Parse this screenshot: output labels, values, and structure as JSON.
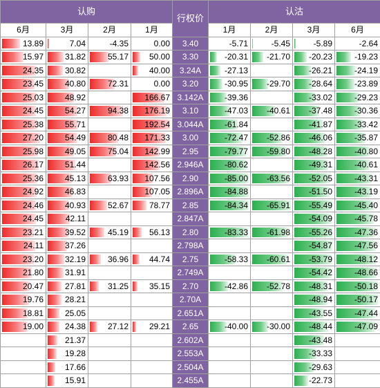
{
  "headers": {
    "calls": "认购",
    "strike": "行权价",
    "puts": "认沽",
    "call_months": [
      "6月",
      "3月",
      "2月",
      "1月"
    ],
    "put_months": [
      "1月",
      "2月",
      "3月",
      "6月"
    ]
  },
  "colors": {
    "header_purple": "#8064a2",
    "call_bar": "#ee2a2a",
    "put_bar": "#2bb04f"
  },
  "rows": [
    {
      "c6": "13.89",
      "c3": "7.04",
      "c2": "-4.35",
      "c1": "0.00",
      "k": "3.40",
      "p1": "-5.71",
      "p2": "-5.45",
      "p3": "-5.89",
      "p6": "-2.64"
    },
    {
      "c6": "15.97",
      "c3": "31.82",
      "c2": "55.17",
      "c1": "50.00",
      "k": "3.30",
      "p1": "-20.31",
      "p2": "-21.70",
      "p3": "-20.23",
      "p6": "-19.23"
    },
    {
      "c6": "24.35",
      "c3": "30.82",
      "c2": "",
      "c1": "40.00",
      "k": "3.24A",
      "p1": "-27.13",
      "p2": "",
      "p3": "-26.21",
      "p6": "-24.19"
    },
    {
      "c6": "23.45",
      "c3": "40.80",
      "c2": "72.31",
      "c1": "0.00",
      "k": "3.20",
      "p1": "-30.95",
      "p2": "-29.70",
      "p3": "-28.64",
      "p6": "-23.89"
    },
    {
      "c6": "25.03",
      "c3": "48.92",
      "c2": "",
      "c1": "166.67",
      "k": "3.142A",
      "p1": "-39.36",
      "p2": "",
      "p3": "-33.02",
      "p6": "-29.23"
    },
    {
      "c6": "24.45",
      "c3": "54.27",
      "c2": "94.38",
      "c1": "176.19",
      "k": "3.10",
      "p1": "-47.03",
      "p2": "-40.61",
      "p3": "-37.48",
      "p6": "-30.36"
    },
    {
      "c6": "25.38",
      "c3": "55.71",
      "c2": "",
      "c1": "192.54",
      "k": "3.044A",
      "p1": "-61.84",
      "p2": "",
      "p3": "-41.87",
      "p6": "-33.42"
    },
    {
      "c6": "27.20",
      "c3": "54.49",
      "c2": "80.48",
      "c1": "171.33",
      "k": "3.00",
      "p1": "-72.47",
      "p2": "-52.86",
      "p3": "-46.06",
      "p6": "-35.87"
    },
    {
      "c6": "25.98",
      "c3": "49.05",
      "c2": "75.04",
      "c1": "142.99",
      "k": "2.95",
      "p1": "-79.77",
      "p2": "-59.80",
      "p3": "-48.28",
      "p6": "-40.80"
    },
    {
      "c6": "26.17",
      "c3": "51.44",
      "c2": "",
      "c1": "142.56",
      "k": "2.946A",
      "p1": "-80.62",
      "p2": "",
      "p3": "-49.31",
      "p6": "-40.61"
    },
    {
      "c6": "25.36",
      "c3": "45.13",
      "c2": "63.93",
      "c1": "107.56",
      "k": "2.90",
      "p1": "-85.00",
      "p2": "-63.56",
      "p3": "-52.05",
      "p6": "-43.31"
    },
    {
      "c6": "24.92",
      "c3": "46.83",
      "c2": "",
      "c1": "107.05",
      "k": "2.896A",
      "p1": "-84.88",
      "p2": "",
      "p3": "-51.50",
      "p6": "-43.19"
    },
    {
      "c6": "24.46",
      "c3": "40.93",
      "c2": "52.67",
      "c1": "78.77",
      "k": "2.85",
      "p1": "-84.34",
      "p2": "-65.91",
      "p3": "-55.49",
      "p6": "-45.40"
    },
    {
      "c6": "24.45",
      "c3": "42.11",
      "c2": "",
      "c1": "",
      "k": "2.847A",
      "p1": "",
      "p2": "",
      "p3": "-54.09",
      "p6": "-45.78"
    },
    {
      "c6": "23.21",
      "c3": "39.52",
      "c2": "45.19",
      "c1": "56.13",
      "k": "2.80",
      "p1": "-83.33",
      "p2": "-61.98",
      "p3": "-55.26",
      "p6": "-47.36"
    },
    {
      "c6": "24.11",
      "c3": "37.26",
      "c2": "",
      "c1": "",
      "k": "2.798A",
      "p1": "",
      "p2": "",
      "p3": "-54.87",
      "p6": "-47.56"
    },
    {
      "c6": "23.20",
      "c3": "32.19",
      "c2": "36.96",
      "c1": "44.74",
      "k": "2.75",
      "p1": "-58.33",
      "p2": "-60.61",
      "p3": "-53.79",
      "p6": "-48.12"
    },
    {
      "c6": "21.80",
      "c3": "31.91",
      "c2": "",
      "c1": "",
      "k": "2.749A",
      "p1": "",
      "p2": "",
      "p3": "-54.42",
      "p6": "-48.66"
    },
    {
      "c6": "20.47",
      "c3": "27.81",
      "c2": "31.25",
      "c1": "35.15",
      "k": "2.70",
      "p1": "-42.86",
      "p2": "-52.78",
      "p3": "-48.31",
      "p6": "-50.18"
    },
    {
      "c6": "19.76",
      "c3": "28.21",
      "c2": "",
      "c1": "",
      "k": "2.70A",
      "p1": "",
      "p2": "",
      "p3": "-48.94",
      "p6": "-50.17"
    },
    {
      "c6": "18.81",
      "c3": "25.05",
      "c2": "",
      "c1": "",
      "k": "2.651A",
      "p1": "",
      "p2": "",
      "p3": "-43.55",
      "p6": "-47.44"
    },
    {
      "c6": "19.00",
      "c3": "24.38",
      "c2": "27.12",
      "c1": "29.21",
      "k": "2.65",
      "p1": "-40.00",
      "p2": "-30.00",
      "p3": "-48.44",
      "p6": "-47.09"
    },
    {
      "c6": "",
      "c3": "21.37",
      "c2": "",
      "c1": "",
      "k": "2.602A",
      "p1": "",
      "p2": "",
      "p3": "-43.48",
      "p6": ""
    },
    {
      "c6": "",
      "c3": "19.28",
      "c2": "",
      "c1": "",
      "k": "2.553A",
      "p1": "",
      "p2": "",
      "p3": "-33.33",
      "p6": ""
    },
    {
      "c6": "",
      "c3": "17.66",
      "c2": "",
      "c1": "",
      "k": "2.504A",
      "p1": "",
      "p2": "",
      "p3": "-29.63",
      "p6": ""
    },
    {
      "c6": "",
      "c3": "15.91",
      "c2": "",
      "c1": "",
      "k": "2.455A",
      "p1": "",
      "p2": "",
      "p3": "-22.73",
      "p6": ""
    }
  ]
}
